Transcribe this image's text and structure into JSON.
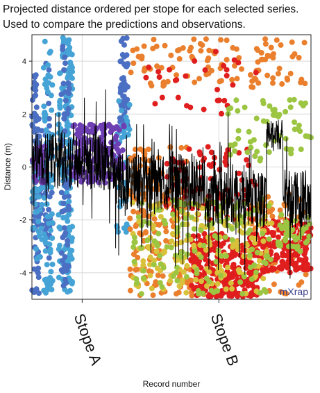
{
  "caption": {
    "line1": "Projected distance ordered per stope for each selected series.",
    "line2": "Used to compare the predictions and observations."
  },
  "watermark": "mXrap",
  "chart_data": {
    "type": "scatter",
    "xlabel": "Record number",
    "ylabel": "Distance (m)",
    "ylim": [
      -5,
      5
    ],
    "yticks": [
      -4,
      -2,
      0,
      2,
      4
    ],
    "xlim": [
      0,
      1000
    ],
    "categories": [
      {
        "label": "Stope A",
        "x": 180
      },
      {
        "label": "Stope B",
        "x": 670
      }
    ],
    "grid": true,
    "colors": {
      "blue": "#4b6fc2",
      "lightblue": "#45a3d6",
      "purple": "#6e3fb3",
      "orange": "#ea7f2d",
      "red": "#e01e1e",
      "green": "#9cc542",
      "yellow": "#d9c23b",
      "line": "#000000"
    },
    "series": [
      {
        "color": "blue",
        "clusters": [
          {
            "x": [
              0,
              25
            ],
            "y": [
              -4.8,
              3.8
            ],
            "n": 70
          },
          {
            "x": [
              10,
              75
            ],
            "y": [
              -2.5,
              1.5
            ],
            "n": 40
          },
          {
            "x": [
              45,
              65
            ],
            "y": [
              -3.5,
              4.8
            ],
            "n": 30
          }
        ]
      },
      {
        "color": "lightblue",
        "clusters": [
          {
            "x": [
              35,
              75
            ],
            "y": [
              -4.8,
              4.8
            ],
            "n": 85
          },
          {
            "x": [
              95,
              145
            ],
            "y": [
              -4.9,
              4.9
            ],
            "n": 140
          },
          {
            "x": [
              0,
              40
            ],
            "y": [
              -3.5,
              0.5
            ],
            "n": 40
          },
          {
            "x": [
              125,
              145
            ],
            "y": [
              -4.5,
              4.5
            ],
            "n": 40
          }
        ]
      },
      {
        "color": "blue",
        "clusters": [
          {
            "x": [
              105,
              135
            ],
            "y": [
              -4.5,
              4.9
            ],
            "n": 60
          },
          {
            "x": [
              315,
              345
            ],
            "y": [
              1.5,
              4.9
            ],
            "n": 60
          }
        ]
      },
      {
        "color": "lightblue",
        "clusters": [
          {
            "x": [
              300,
              350
            ],
            "y": [
              -2.5,
              2.5
            ],
            "n": 40
          }
        ]
      },
      {
        "color": "purple",
        "clusters": [
          {
            "x": [
              0,
              50
            ],
            "y": [
              -0.6,
              0.9
            ],
            "n": 40
          },
          {
            "x": [
              145,
              330
            ],
            "y": [
              -0.6,
              1.6
            ],
            "n": 190
          }
        ]
      },
      {
        "color": "orange",
        "clusters": [
          {
            "x": [
              350,
              560
            ],
            "y": [
              -3.5,
              0.8
            ],
            "n": 120
          },
          {
            "x": [
              350,
              980
            ],
            "y": [
              3.0,
              4.9
            ],
            "n": 110
          },
          {
            "x": [
              350,
              720
            ],
            "y": [
              -4.9,
              -3.8
            ],
            "n": 60
          },
          {
            "x": [
              780,
              990
            ],
            "y": [
              -4.8,
              -1.0
            ],
            "n": 60
          }
        ]
      },
      {
        "color": "red",
        "clusters": [
          {
            "x": [
              570,
              820
            ],
            "y": [
              -4.9,
              -2.5
            ],
            "n": 260
          },
          {
            "x": [
              820,
              1000
            ],
            "y": [
              -4.0,
              -2.0
            ],
            "n": 160
          },
          {
            "x": [
              480,
              800
            ],
            "y": [
              -2.0,
              0.8
            ],
            "n": 80
          },
          {
            "x": [
              400,
              820
            ],
            "y": [
              2.0,
              4.5
            ],
            "n": 30
          }
        ]
      },
      {
        "color": "yellow",
        "clusters": [
          {
            "x": [
              360,
              860
            ],
            "y": [
              -4.8,
              -1.2
            ],
            "n": 180
          }
        ]
      },
      {
        "color": "green",
        "clusters": [
          {
            "x": [
              360,
              860
            ],
            "y": [
              -4.9,
              -1.2
            ],
            "n": 130
          },
          {
            "x": [
              700,
              1000
            ],
            "y": [
              0.2,
              2.6
            ],
            "n": 60
          },
          {
            "x": [
              880,
              1000
            ],
            "y": [
              -3.2,
              -1.8
            ],
            "n": 40
          }
        ]
      }
    ]
  }
}
